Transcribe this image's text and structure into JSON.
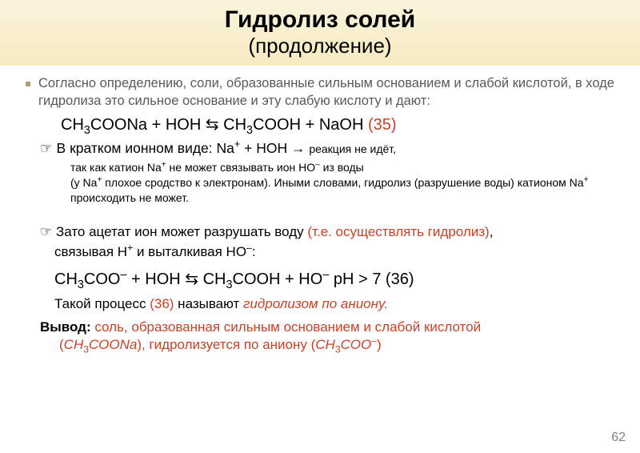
{
  "title": {
    "main": "Гидролиз солей",
    "sub": "(продолжение)"
  },
  "intro": "Согласно определению, соли, образованные сильным основанием и слабой кислотой, в ходе гидролиза это сильное основание и  эту слабую кислоту и дают:",
  "eq1": {
    "lhs": "CH",
    "sub1": "3",
    "mid1": "COONa + HOH ⇆ CH",
    "sub2": "3",
    "mid2": "COOH + NaOH   ",
    "num": "(35)"
  },
  "ionic": {
    "prefix": "☞ В кратком ионном виде: ",
    "body_pre": "Na",
    "sup1": "+",
    "body_mid": " + HOH → ",
    "tail": "реакция не идёт,"
  },
  "note": {
    "l1_pre": "так как катион Na",
    "l1_sup": "+",
    "l1_mid": "  не может связывать ион ",
    "l1_ho": "HO",
    "l1_supm": "–",
    "l1_tail": "  из  воды",
    "l2_pre": "(у Na",
    "l2_sup": "+",
    "l2_mid": "  плохое сродство к электронам). Иными словами, гидролиз (разрушение воды) катионом Na",
    "l2_sup2": "+",
    "l2_tail": " происходить не может."
  },
  "anion": {
    "prefix": "☞ Зато ацетат ион может разрушать воду ",
    "hyd": "(т.е. осуществлять гидролиз)",
    "comma": ",",
    "l2_pre": "связывая H",
    "l2_sup": "+",
    "l2_mid": " и выталкивая НO",
    "l2_supm": "–",
    "l2_tail": ":"
  },
  "eq2": {
    "p1": "CH",
    "s1": "3",
    "p2": "COO",
    "sp1": "–",
    "p3": " + HOH ⇆ CH",
    "s2": "3",
    "p4": "COOH + HO",
    "sp2": "–",
    "p5": "    pH > 7 ",
    "num": "(36)"
  },
  "process": {
    "pre": "Такой процесс ",
    "n": "(36)",
    "mid": " называют ",
    "term": "гидролизом по аниону."
  },
  "concl": {
    "lead": "Вывод:",
    "l1": " соль, образованная сильным основанием и слабой кислотой",
    "l2_pre": "(",
    "l2_f": "СН",
    "l2_s": "3",
    "l2_f2": "СООNa",
    "l2_mid": "), гидролизуется по аниону (",
    "l2_f3": "СН",
    "l2_s2": "3",
    "l2_f4": "СОО",
    "l2_sp": "–",
    "l2_tail": ")"
  },
  "page": "62",
  "colors": {
    "accent": "#cc4125"
  }
}
